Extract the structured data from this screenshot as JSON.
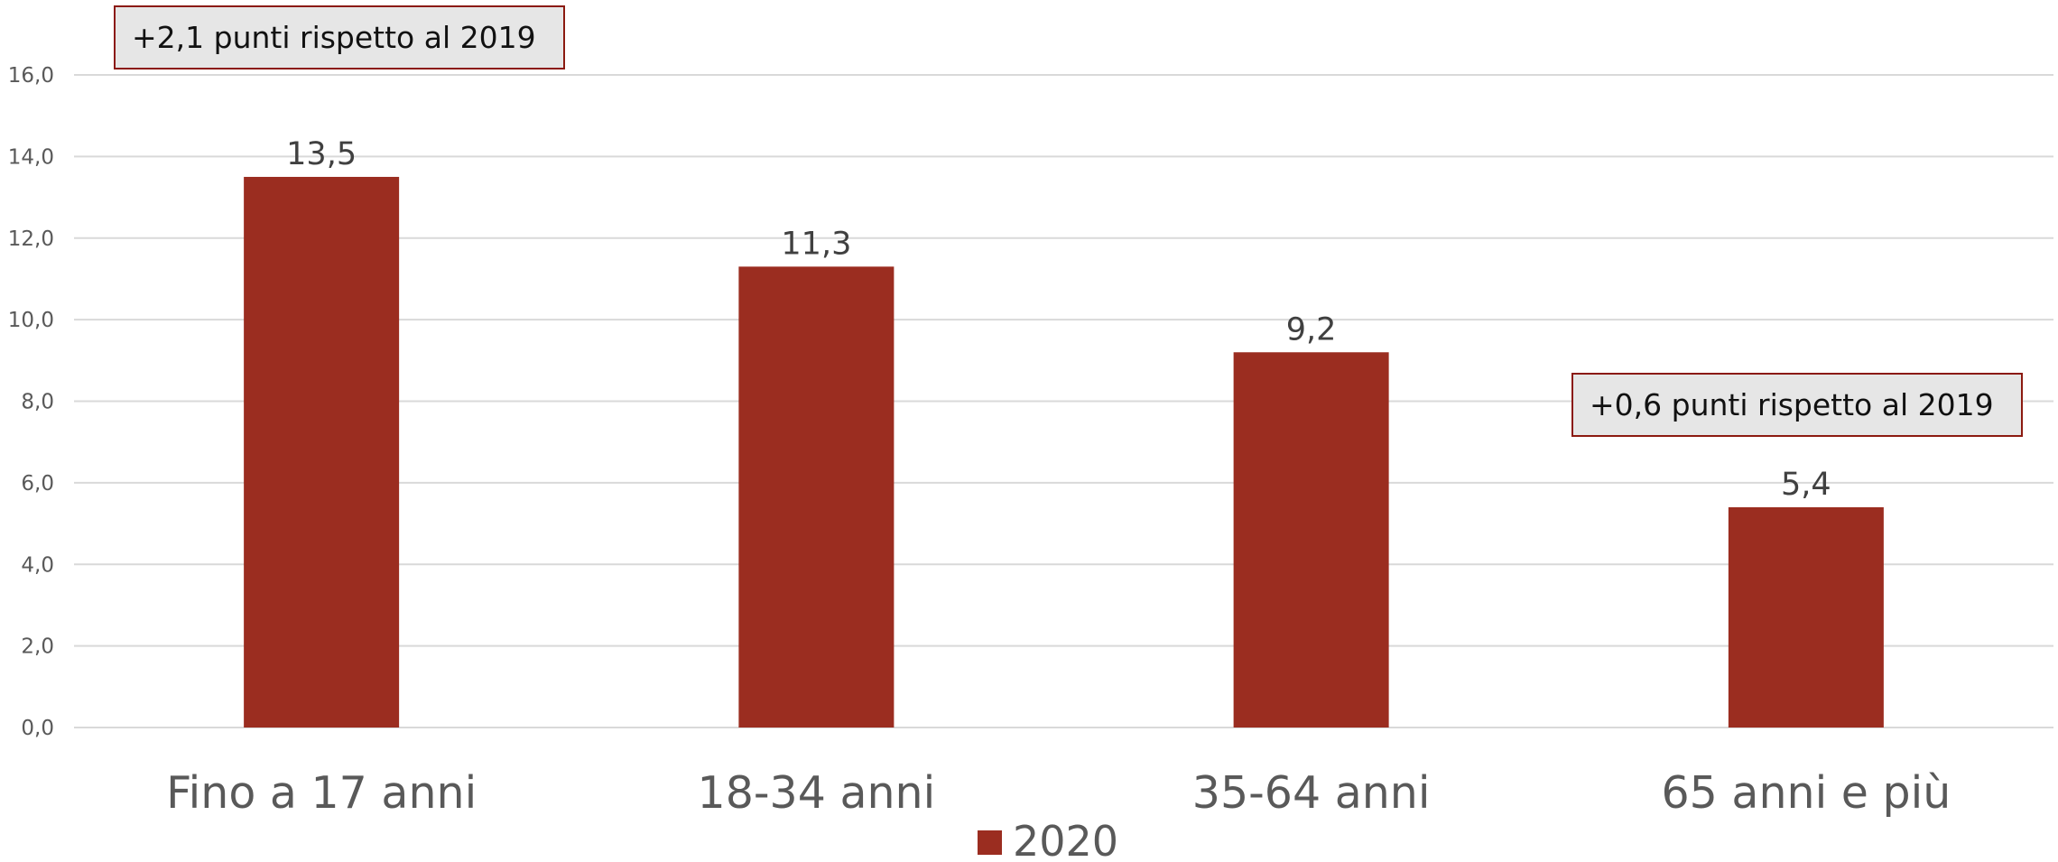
{
  "chart_data": {
    "type": "bar",
    "categories": [
      "Fino a 17 anni",
      "18-34 anni",
      "35-64 anni",
      "65 anni e più"
    ],
    "series": [
      {
        "name": "2020",
        "values": [
          13.5,
          11.3,
          9.2,
          5.4
        ],
        "color": "#9b2d20"
      }
    ],
    "data_labels": [
      "13,5",
      "11,3",
      "9,2",
      "5,4"
    ],
    "ylim": [
      0,
      16
    ],
    "yticks": [
      0,
      2,
      4,
      6,
      8,
      10,
      12,
      14,
      16
    ],
    "ytick_labels": [
      "0,0",
      "2,0",
      "4,0",
      "6,0",
      "8,0",
      "10,0",
      "12,0",
      "14,0",
      "16,0"
    ],
    "grid": true,
    "legend_position": "bottom",
    "title": "",
    "xlabel": "",
    "ylabel": ""
  },
  "annotations": [
    {
      "text": "+2,1 punti rispetto al 2019"
    },
    {
      "text": "+0,6 punti rispetto al 2019"
    }
  ],
  "colors": {
    "grid": "#d9d9d9",
    "annotation_border": "#8b1a10",
    "annotation_fill": "#e6e6e6"
  }
}
